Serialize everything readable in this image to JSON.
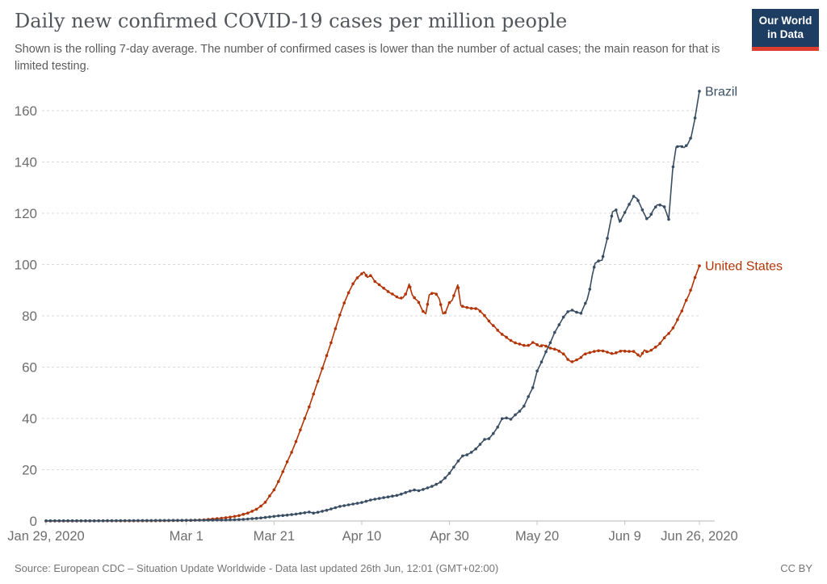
{
  "header": {
    "title": "Daily new confirmed COVID-19 cases per million people",
    "subtitle": "Shown is the rolling 7-day average. The number of confirmed cases is lower than the number of actual cases; the main reason for that is limited testing.",
    "logo": {
      "line1": "Our World",
      "line2": "in Data"
    }
  },
  "footer": {
    "source": "Source: European CDC – Situation Update Worldwide - Data last updated 26th Jun, 12:01 (GMT+02:00)",
    "license": "CC BY"
  },
  "chart_data": {
    "type": "line",
    "title": "Daily new confirmed COVID-19 cases per million people",
    "xlabel": "",
    "ylabel": "",
    "grid": "horizontal-dashed",
    "legend_position": "end-of-line",
    "x_axis": {
      "unit": "days since Jan 29, 2020",
      "range_days": [
        0,
        149
      ],
      "tick_days": [
        0,
        32,
        52,
        72,
        92,
        112,
        132,
        149
      ],
      "tick_labels": [
        "Jan 29, 2020",
        "Mar 1",
        "Mar 21",
        "Apr 10",
        "Apr 30",
        "May 20",
        "Jun 9",
        "Jun 26, 2020"
      ]
    },
    "y_axis": {
      "ticks": [
        0,
        20,
        40,
        60,
        80,
        100,
        120,
        140,
        160
      ],
      "range": [
        0,
        170
      ]
    },
    "series": [
      {
        "name": "Brazil",
        "color": "#3a4e63",
        "points": [
          [
            0,
            0.1
          ],
          [
            6,
            0.1
          ],
          [
            12,
            0.1
          ],
          [
            18,
            0.15
          ],
          [
            24,
            0.2
          ],
          [
            30,
            0.25
          ],
          [
            34,
            0.3
          ],
          [
            38,
            0.35
          ],
          [
            41,
            0.4
          ],
          [
            43,
            0.5
          ],
          [
            45,
            0.65
          ],
          [
            47,
            0.9
          ],
          [
            49,
            1.2
          ],
          [
            51,
            1.6
          ],
          [
            53,
            2.0
          ],
          [
            55,
            2.3
          ],
          [
            57,
            2.7
          ],
          [
            59,
            3.2
          ],
          [
            60,
            3.5
          ],
          [
            61,
            3.1
          ],
          [
            62,
            3.4
          ],
          [
            63,
            3.8
          ],
          [
            64,
            4.2
          ],
          [
            65,
            4.7
          ],
          [
            66,
            5.2
          ],
          [
            67,
            5.7
          ],
          [
            68,
            6.0
          ],
          [
            69,
            6.3
          ],
          [
            70,
            6.6
          ],
          [
            71,
            6.9
          ],
          [
            72,
            7.2
          ],
          [
            73,
            7.7
          ],
          [
            74,
            8.2
          ],
          [
            75,
            8.5
          ],
          [
            76,
            8.8
          ],
          [
            77,
            9.1
          ],
          [
            78,
            9.4
          ],
          [
            79,
            9.7
          ],
          [
            80,
            10.0
          ],
          [
            81,
            10.5
          ],
          [
            82,
            11.1
          ],
          [
            83,
            11.7
          ],
          [
            84,
            12.1
          ],
          [
            85,
            11.8
          ],
          [
            86,
            12.3
          ],
          [
            87,
            12.9
          ],
          [
            88,
            13.5
          ],
          [
            89,
            14.3
          ],
          [
            90,
            15.2
          ],
          [
            91,
            16.8
          ],
          [
            92,
            18.6
          ],
          [
            93,
            21.0
          ],
          [
            94,
            23.4
          ],
          [
            95,
            25.4
          ],
          [
            96,
            25.8
          ],
          [
            97,
            26.8
          ],
          [
            98,
            28.1
          ],
          [
            99,
            29.9
          ],
          [
            100,
            31.8
          ],
          [
            101,
            32.1
          ],
          [
            102,
            34.1
          ],
          [
            103,
            36.6
          ],
          [
            104,
            39.9
          ],
          [
            105,
            40.2
          ],
          [
            106,
            39.7
          ],
          [
            107,
            41.4
          ],
          [
            108,
            42.8
          ],
          [
            109,
            44.8
          ],
          [
            110,
            48.5
          ],
          [
            111,
            52.0
          ],
          [
            112,
            58.5
          ],
          [
            113,
            62.0
          ],
          [
            114,
            66.0
          ],
          [
            115,
            69.5
          ],
          [
            116,
            73.5
          ],
          [
            117,
            76.5
          ],
          [
            118,
            79.5
          ],
          [
            119,
            81.6
          ],
          [
            120,
            82.2
          ],
          [
            121,
            81.4
          ],
          [
            122,
            81.0
          ],
          [
            122.7,
            83.8
          ],
          [
            123.4,
            86.3
          ],
          [
            124,
            90.4
          ],
          [
            124.6,
            96.0
          ],
          [
            125.2,
            100.5
          ],
          [
            126,
            101.4
          ],
          [
            126.8,
            101.7
          ],
          [
            127.4,
            106.0
          ],
          [
            128,
            110.2
          ],
          [
            128.6,
            115.5
          ],
          [
            129.2,
            120.6
          ],
          [
            130,
            121.3
          ],
          [
            130.8,
            116.5
          ],
          [
            131.6,
            119.0
          ],
          [
            132.6,
            122.3
          ],
          [
            133.3,
            124.4
          ],
          [
            134,
            126.6
          ],
          [
            134.8,
            125.7
          ],
          [
            135.5,
            123.2
          ],
          [
            136.3,
            120.2
          ],
          [
            137,
            117.9
          ],
          [
            137.7,
            118.6
          ],
          [
            138.5,
            121.3
          ],
          [
            139.4,
            123.3
          ],
          [
            140.2,
            123.2
          ],
          [
            141,
            122.5
          ],
          [
            142,
            117.6
          ],
          [
            142.9,
            137.0
          ],
          [
            143.7,
            145.9
          ],
          [
            144.7,
            146.2
          ],
          [
            145.5,
            145.6
          ],
          [
            146.3,
            146.8
          ],
          [
            147.1,
            149.6
          ],
          [
            147.9,
            156.1
          ],
          [
            149,
            167.6
          ]
        ]
      },
      {
        "name": "United States",
        "color": "#b13507",
        "points": [
          [
            0,
            0.0
          ],
          [
            6,
            0.0
          ],
          [
            12,
            0.05
          ],
          [
            18,
            0.05
          ],
          [
            24,
            0.1
          ],
          [
            29,
            0.15
          ],
          [
            33,
            0.25
          ],
          [
            36,
            0.45
          ],
          [
            38,
            0.75
          ],
          [
            40,
            1.1
          ],
          [
            42,
            1.5
          ],
          [
            44,
            2.1
          ],
          [
            45,
            2.6
          ],
          [
            46,
            3.1
          ],
          [
            47,
            3.8
          ],
          [
            48,
            4.6
          ],
          [
            49,
            5.8
          ],
          [
            50,
            7.3
          ],
          [
            51,
            9.8
          ],
          [
            52,
            12.1
          ],
          [
            53,
            15.4
          ],
          [
            54,
            19.2
          ],
          [
            55,
            23.1
          ],
          [
            56,
            26.8
          ],
          [
            57,
            31.0
          ],
          [
            58,
            35.5
          ],
          [
            59,
            40.0
          ],
          [
            60,
            44.5
          ],
          [
            61,
            49.5
          ],
          [
            62,
            54.5
          ],
          [
            63,
            59.5
          ],
          [
            64,
            64.5
          ],
          [
            65,
            69.5
          ],
          [
            66,
            75.0
          ],
          [
            67,
            80.3
          ],
          [
            68,
            85.0
          ],
          [
            69,
            89.0
          ],
          [
            70,
            92.5
          ],
          [
            70.8,
            94.5
          ],
          [
            71.6,
            95.8
          ],
          [
            72.5,
            97.1
          ],
          [
            73.3,
            95.0
          ],
          [
            74.1,
            95.8
          ],
          [
            75,
            93.4
          ],
          [
            75.8,
            92.4
          ],
          [
            76.6,
            91.3
          ],
          [
            77.4,
            90.3
          ],
          [
            78.2,
            89.2
          ],
          [
            79,
            88.5
          ],
          [
            79.8,
            87.6
          ],
          [
            80.6,
            86.8
          ],
          [
            81.4,
            87.1
          ],
          [
            82.1,
            88.7
          ],
          [
            82.8,
            92.4
          ],
          [
            83.5,
            88.2
          ],
          [
            84.2,
            86.6
          ],
          [
            84.9,
            85.6
          ],
          [
            85.9,
            81.9
          ],
          [
            86.6,
            80.8
          ],
          [
            87.4,
            88.2
          ],
          [
            88.2,
            88.9
          ],
          [
            88.9,
            88.7
          ],
          [
            89.7,
            86.6
          ],
          [
            90.5,
            80.8
          ],
          [
            91.1,
            81.3
          ],
          [
            91.9,
            85.0
          ],
          [
            92.6,
            86.0
          ],
          [
            93.9,
            92.1
          ],
          [
            94.6,
            84.0
          ],
          [
            95.3,
            83.5
          ],
          [
            96.1,
            83.2
          ],
          [
            97,
            82.9
          ],
          [
            97.8,
            82.9
          ],
          [
            98.5,
            82.6
          ],
          [
            99.3,
            81.3
          ],
          [
            100,
            80.1
          ],
          [
            100.9,
            78.2
          ],
          [
            101.5,
            76.9
          ],
          [
            102.4,
            75.6
          ],
          [
            103.2,
            74.0
          ],
          [
            104,
            72.8
          ],
          [
            104.8,
            71.9
          ],
          [
            105.5,
            70.9
          ],
          [
            106.4,
            70.0
          ],
          [
            107.2,
            69.3
          ],
          [
            108,
            69.0
          ],
          [
            108.7,
            68.6
          ],
          [
            109.5,
            68.3
          ],
          [
            110.3,
            68.6
          ],
          [
            111,
            69.6
          ],
          [
            111.8,
            69.0
          ],
          [
            112.6,
            68.0
          ],
          [
            113.4,
            68.6
          ],
          [
            114.2,
            68.0
          ],
          [
            115,
            67.4
          ],
          [
            115.8,
            67.1
          ],
          [
            116.6,
            66.7
          ],
          [
            117.4,
            65.8
          ],
          [
            118.2,
            64.9
          ],
          [
            119,
            63.0
          ],
          [
            119.8,
            62.0
          ],
          [
            120.5,
            62.4
          ],
          [
            121.2,
            63.0
          ],
          [
            121.9,
            63.6
          ],
          [
            122.6,
            64.9
          ],
          [
            123.6,
            65.5
          ],
          [
            124.3,
            65.8
          ],
          [
            125,
            66.1
          ],
          [
            125.8,
            66.4
          ],
          [
            126.7,
            66.4
          ],
          [
            127.6,
            66.1
          ],
          [
            128.5,
            65.5
          ],
          [
            129.4,
            65.2
          ],
          [
            130.3,
            65.8
          ],
          [
            131.3,
            66.4
          ],
          [
            132.2,
            66.2
          ],
          [
            133.1,
            66.1
          ],
          [
            134,
            66.1
          ],
          [
            134.8,
            65.1
          ],
          [
            135.5,
            64.0
          ],
          [
            136.5,
            66.7
          ],
          [
            137.2,
            65.8
          ],
          [
            138.1,
            66.7
          ],
          [
            138.9,
            67.7
          ],
          [
            139.8,
            68.8
          ],
          [
            140.5,
            70.3
          ],
          [
            141.2,
            71.9
          ],
          [
            142,
            73.1
          ],
          [
            142.9,
            75.0
          ],
          [
            143.7,
            77.4
          ],
          [
            144.4,
            80.0
          ],
          [
            145,
            81.9
          ],
          [
            145.7,
            85.0
          ],
          [
            146.6,
            88.2
          ],
          [
            147.3,
            91.3
          ],
          [
            147.9,
            94.5
          ],
          [
            149,
            99.5
          ]
        ]
      }
    ]
  },
  "style": {
    "grid_color": "#dadada",
    "axis_color": "#c4c4c4",
    "tick_label_color": "#6e6e6e"
  }
}
